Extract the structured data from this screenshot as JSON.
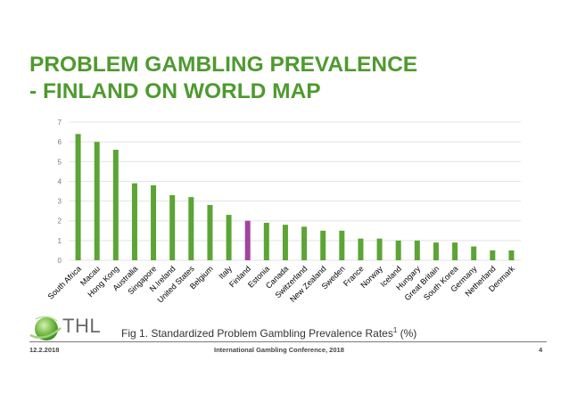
{
  "slide": {
    "title_line1": "PROBLEM GAMBLING PREVALENCE",
    "title_line2": "- FINLAND ON WORLD MAP",
    "caption_text": "Fig 1. Standardized Problem Gambling Prevalence Rates",
    "caption_superscript": "1",
    "caption_unit": " (%)",
    "logo_text": "THL",
    "footer_date": "12.2.2018",
    "footer_event": "International Gambling Conference, 2018",
    "page_number": "4"
  },
  "colors": {
    "title": "#4E9A2F",
    "bar_default": "#5BA535",
    "bar_highlight": "#A1449E",
    "logo_green": "#7CC04A"
  },
  "chart_data": {
    "type": "bar",
    "categories": [
      "South Africa",
      "Macau",
      "Hong Kong",
      "Australia",
      "Singapore",
      "N.Ireland",
      "United States",
      "Belgium",
      "Italy",
      "Finland",
      "Estonia",
      "Canada",
      "Switzerland",
      "New Zealand",
      "Sweden",
      "France",
      "Norway",
      "Iceland",
      "Hungary",
      "Great Britain",
      "South Korea",
      "Germany",
      "Netherland",
      "Denmark"
    ],
    "values": [
      6.4,
      6.0,
      5.6,
      3.9,
      3.8,
      3.3,
      3.2,
      2.8,
      2.3,
      2.0,
      1.9,
      1.8,
      1.7,
      1.5,
      1.5,
      1.1,
      1.1,
      1.0,
      1.0,
      0.9,
      0.9,
      0.7,
      0.5,
      0.5
    ],
    "highlight_category": "Finland",
    "ylim": [
      0,
      7
    ],
    "yticks": [
      "0",
      "1",
      "2",
      "3",
      "4",
      "5",
      "6",
      "7"
    ],
    "grid": true
  }
}
